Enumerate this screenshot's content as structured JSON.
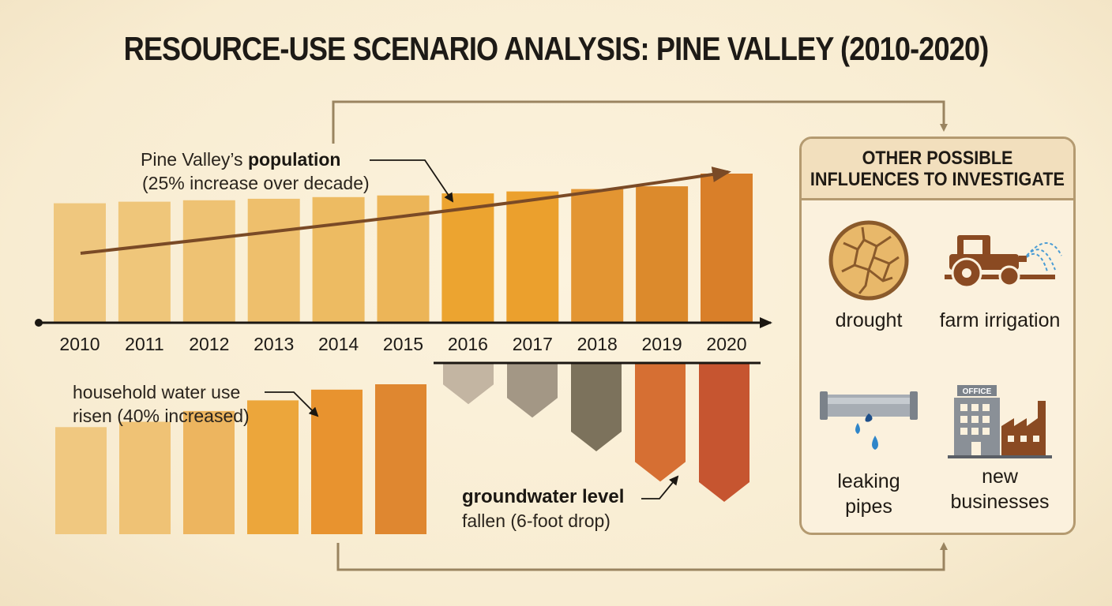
{
  "title": "RESOURCE-USE SCENARIO ANALYSIS: PINE VALLEY (2010-2020)",
  "colors": {
    "arrow": "#9a8460",
    "trend": "#7a4a26",
    "population_bars": [
      "#efc77e",
      "#efc67a",
      "#eec273",
      "#eebf6c",
      "#edbb62",
      "#ecb558",
      "#eca430",
      "#eba02d",
      "#e39532",
      "#dc8a2c",
      "#d97f29"
    ],
    "water_bars": [
      "#f0c880",
      "#efc275",
      "#edb55f",
      "#eca63b",
      "#e8932f",
      "#df8730"
    ],
    "groundwater_bars": [
      "#c3b5a2",
      "#a39785",
      "#7c725c",
      "#d66f33",
      "#c65530"
    ]
  },
  "chart_data": [
    {
      "type": "bar",
      "name": "population",
      "categories": [
        "2010",
        "2011",
        "2012",
        "2013",
        "2014",
        "2015",
        "2016",
        "2017",
        "2018",
        "2019",
        "2020"
      ],
      "values": [
        100,
        101.3,
        102.5,
        103.8,
        105.2,
        106.6,
        108.3,
        110.0,
        112.0,
        114.3,
        125
      ],
      "unit": "relative population",
      "annotation": {
        "prefix": "Pine Valley’s ",
        "bold": "population",
        "sub": "(25% increase over decade)"
      }
    },
    {
      "type": "bar",
      "name": "household water use",
      "values": [
        100,
        105,
        115,
        125,
        135,
        140
      ],
      "unit": "relative water use",
      "annotation": {
        "line1": "household water use",
        "line2": "risen (40% increased)"
      }
    },
    {
      "type": "bar",
      "name": "groundwater level",
      "categories": [
        "2016",
        "2017",
        "2018",
        "2019",
        "2020"
      ],
      "values": [
        -1.2,
        -1.6,
        -2.6,
        -3.5,
        -4.1
      ],
      "unit": "drop",
      "annotation": {
        "bold": "groundwater level",
        "line2": "fallen (6-foot drop)"
      }
    }
  ],
  "panel": {
    "heading_line1": "OTHER POSSIBLE",
    "heading_line2": "INFLUENCES TO INVESTIGATE",
    "items": [
      {
        "icon": "cracked-earth-icon",
        "line1": "drought",
        "line2": ""
      },
      {
        "icon": "tractor-irrigation-icon",
        "line1": "farm irrigation",
        "line2": ""
      },
      {
        "icon": "leaking-pipe-icon",
        "line1": "leaking",
        "line2": "pipes"
      },
      {
        "icon": "office-factory-icon",
        "line1": "new",
        "line2": "businesses",
        "sign": "OFFICE"
      }
    ]
  }
}
